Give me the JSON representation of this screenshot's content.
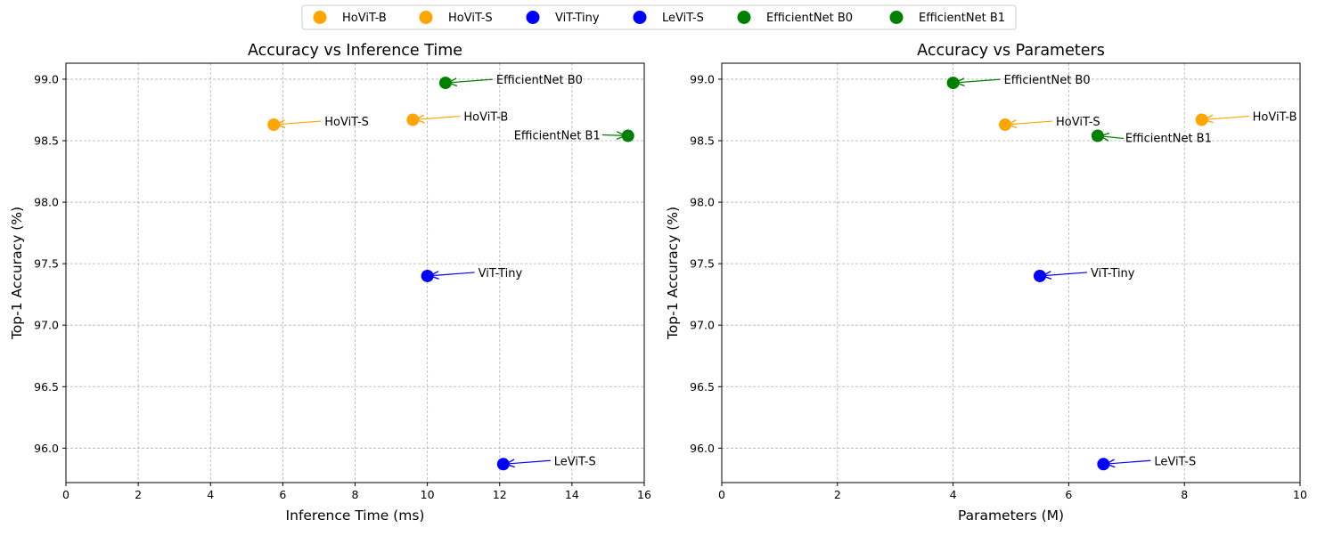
{
  "legend": {
    "entries": [
      {
        "label": "HoViT-B",
        "color": "#ffa500"
      },
      {
        "label": "HoViT-S",
        "color": "#ffa500"
      },
      {
        "label": "ViT-Tiny",
        "color": "#0000ff"
      },
      {
        "label": "LeViT-S",
        "color": "#0000ff"
      },
      {
        "label": "EfficientNet B0",
        "color": "#008000"
      },
      {
        "label": "EfficientNet B1",
        "color": "#008000"
      }
    ],
    "placement": "top-center"
  },
  "chart_data": [
    {
      "type": "scatter",
      "title": "Accuracy vs Inference Time",
      "xlabel": "Inference Time (ms)",
      "ylabel": "Top-1 Accuracy (%)",
      "xlim": [
        0,
        16
      ],
      "ylim": [
        95.72,
        99.13
      ],
      "xticks": [
        "0",
        "2",
        "4",
        "6",
        "8",
        "10",
        "12",
        "14",
        "16"
      ],
      "yticks": [
        "96.0",
        "96.5",
        "97.0",
        "97.5",
        "98.0",
        "98.5",
        "99.0"
      ],
      "grid": true,
      "points": [
        {
          "label": "HoViT-B",
          "x": 9.6,
          "y": 98.67,
          "color": "#ffa500",
          "label_side": "right"
        },
        {
          "label": "HoViT-S",
          "x": 5.75,
          "y": 98.63,
          "color": "#ffa500",
          "label_side": "right"
        },
        {
          "label": "ViT-Tiny",
          "x": 10.0,
          "y": 97.4,
          "color": "#0000ff",
          "label_side": "right"
        },
        {
          "label": "LeViT-S",
          "x": 12.1,
          "y": 95.87,
          "color": "#0000ff",
          "label_side": "right"
        },
        {
          "label": "EfficientNet B0",
          "x": 10.5,
          "y": 98.97,
          "color": "#008000",
          "label_side": "right"
        },
        {
          "label": "EfficientNet B1",
          "x": 15.55,
          "y": 98.54,
          "color": "#008000",
          "label_side": "left"
        }
      ]
    },
    {
      "type": "scatter",
      "title": "Accuracy vs Parameters",
      "xlabel": "Parameters (M)",
      "ylabel": "Top-1 Accuracy (%)",
      "xlim": [
        0,
        10
      ],
      "ylim": [
        95.72,
        99.13
      ],
      "xticks": [
        "0",
        "2",
        "4",
        "6",
        "8",
        "10"
      ],
      "yticks": [
        "96.0",
        "96.5",
        "97.0",
        "97.5",
        "98.0",
        "98.5",
        "99.0"
      ],
      "grid": true,
      "points": [
        {
          "label": "HoViT-B",
          "x": 8.3,
          "y": 98.67,
          "color": "#ffa500",
          "label_side": "right"
        },
        {
          "label": "HoViT-S",
          "x": 4.9,
          "y": 98.63,
          "color": "#ffa500",
          "label_side": "right"
        },
        {
          "label": "ViT-Tiny",
          "x": 5.5,
          "y": 97.4,
          "color": "#0000ff",
          "label_side": "right"
        },
        {
          "label": "LeViT-S",
          "x": 6.6,
          "y": 95.87,
          "color": "#0000ff",
          "label_side": "right"
        },
        {
          "label": "EfficientNet B0",
          "x": 4.0,
          "y": 98.97,
          "color": "#008000",
          "label_side": "right"
        },
        {
          "label": "EfficientNet B1",
          "x": 6.5,
          "y": 98.54,
          "color": "#008000",
          "label_side": "right-below"
        }
      ]
    }
  ]
}
